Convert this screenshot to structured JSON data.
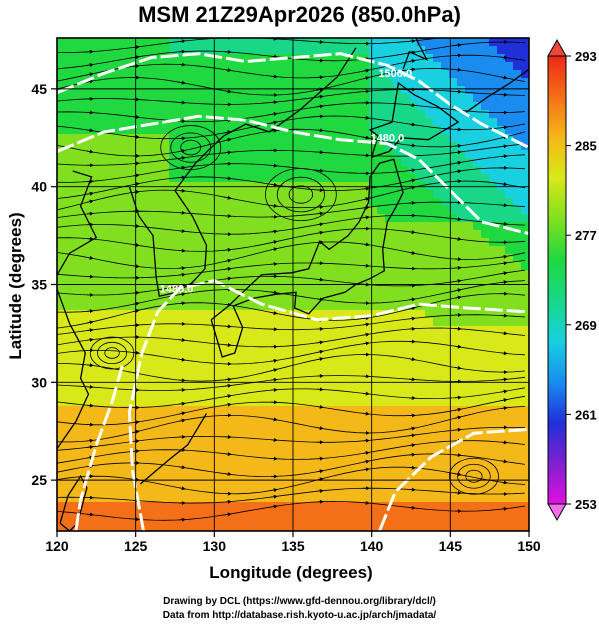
{
  "title": "MSM 21Z29Apr2026 (850.0hPa)",
  "credits": {
    "line1": "Drawing by DCL (https://www.gfd-dennou.org/library/dcl/)",
    "line2": "Data from http://database.rish.kyoto-u.ac.jp/arch/jmadata/"
  },
  "map": {
    "xlabel": "Longitude (degrees)",
    "ylabel": "Latitude  (degrees)",
    "lon_range": [
      120,
      150
    ],
    "lat_range": [
      22.4,
      47.6
    ],
    "lon_ticks": [
      120,
      125,
      130,
      135,
      140,
      145,
      150
    ],
    "lat_ticks": [
      25,
      30,
      35,
      40,
      45
    ],
    "field": "temperature (K) shaded, geopotential height contours, streamlines",
    "contour_labels": [
      {
        "text": "1500.0",
        "lon": 141.5,
        "lat": 45.6
      },
      {
        "text": "1480.0",
        "lon": 141.0,
        "lat": 42.3
      },
      {
        "text": "1480.0",
        "lon": 127.6,
        "lat": 34.6
      }
    ]
  },
  "colorbar": {
    "min": 253,
    "max": 293,
    "ticks": [
      253,
      261,
      269,
      277,
      285,
      293
    ],
    "colors": [
      "#e010e0",
      "#8020d0",
      "#2030d8",
      "#1a8cf0",
      "#18d0e0",
      "#18d888",
      "#20d840",
      "#80e020",
      "#d8e818",
      "#f4b818",
      "#f47018",
      "#ec2818"
    ]
  }
}
